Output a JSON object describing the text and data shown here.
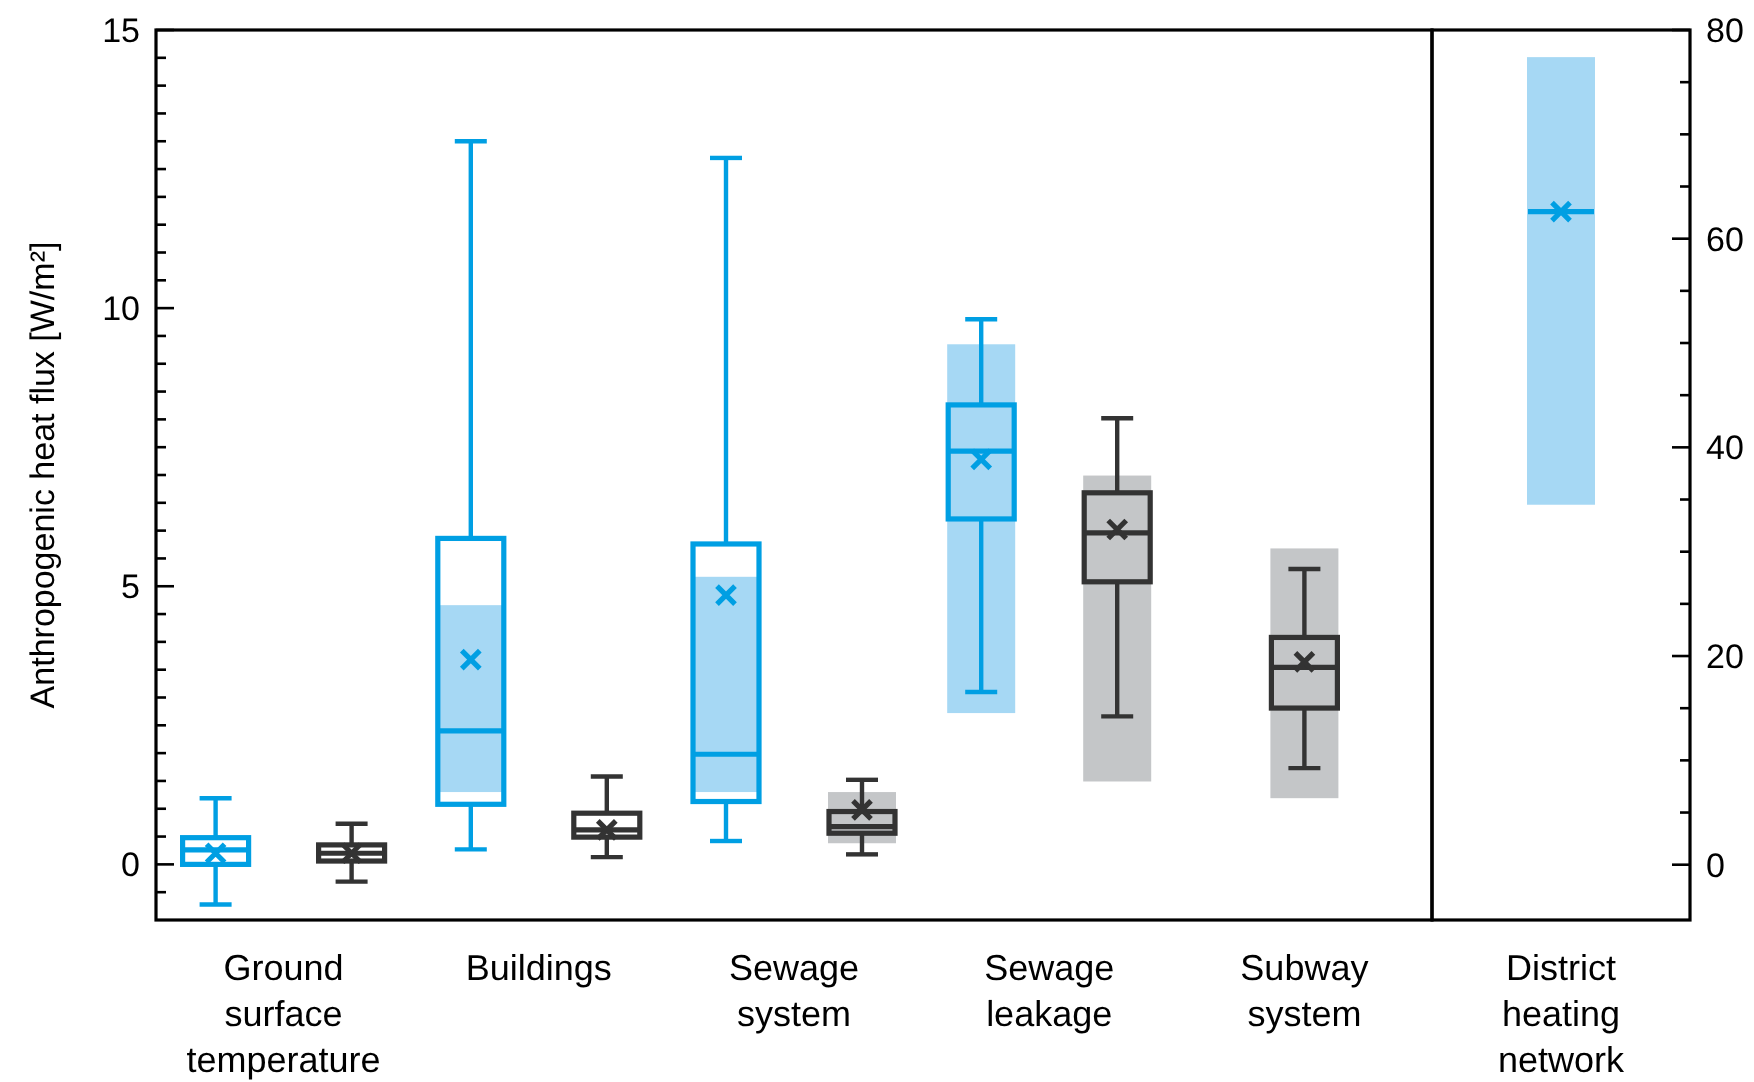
{
  "chart_data": [
    {
      "type": "box",
      "ylabel": "Anthropogenic heat flux [W/m²]",
      "categories": [
        "Ground surface temperature",
        "Buildings",
        "Sewage system",
        "Sewage leakage",
        "Subway system"
      ],
      "ylim": [
        -1,
        15
      ],
      "yticks": [
        {
          "value": -0.5,
          "label": null
        },
        0,
        {
          "value": 0.5,
          "label": null
        },
        {
          "value": 1,
          "label": null
        },
        {
          "value": 1.5,
          "label": null
        },
        {
          "value": 2,
          "label": null
        },
        {
          "value": 2.5,
          "label": null
        },
        {
          "value": 3,
          "label": null
        },
        {
          "value": 3.5,
          "label": null
        },
        {
          "value": 4,
          "label": null
        },
        {
          "value": 4.5,
          "label": null
        },
        5,
        {
          "value": 5.5,
          "label": null
        },
        {
          "value": 6,
          "label": null
        },
        {
          "value": 6.5,
          "label": null
        },
        {
          "value": 7,
          "label": null
        },
        {
          "value": 7.5,
          "label": null
        },
        {
          "value": 8,
          "label": null
        },
        {
          "value": 8.5,
          "label": null
        },
        {
          "value": 9,
          "label": null
        },
        {
          "value": 9.5,
          "label": null
        },
        10,
        {
          "value": 10.5,
          "label": null
        },
        {
          "value": 11,
          "label": null
        },
        {
          "value": 11.5,
          "label": null
        },
        {
          "value": 12,
          "label": null
        },
        {
          "value": 12.5,
          "label": null
        },
        {
          "value": 13,
          "label": null
        },
        {
          "value": 13.5,
          "label": null
        },
        {
          "value": 14,
          "label": null
        },
        {
          "value": 14.5,
          "label": null
        },
        15
      ],
      "series": [
        {
          "type": "bar",
          "color": "#a6d8f4",
          "base": [
            null,
            1.3,
            1.3,
            2.72,
            null
          ],
          "values": [
            null,
            3.36,
            3.87,
            6.63,
            null
          ]
        },
        {
          "type": "bar",
          "color": "#c4c6c8",
          "base": [
            null,
            null,
            0.38,
            1.49,
            1.19
          ],
          "values": [
            null,
            null,
            0.92,
            5.5,
            4.49
          ]
        },
        {
          "color": "#009fe3",
          "boxes": [
            {
              "low": -0.72,
              "q1": 0,
              "median": 0.26,
              "q3": 0.48,
              "high": 1.19,
              "mean": 0.2
            },
            {
              "low": 0.27,
              "q1": 1.08,
              "median": 2.4,
              "q3": 5.86,
              "high": 13,
              "mean": 3.68
            },
            {
              "low": 0.42,
              "q1": 1.13,
              "median": 1.98,
              "q3": 5.76,
              "high": 12.7,
              "mean": 4.84
            },
            {
              "low": 3.1,
              "q1": 6.21,
              "median": 7.43,
              "q3": 8.26,
              "high": 9.8,
              "mean": 7.28
            },
            null
          ]
        },
        {
          "color": "#333333",
          "boxes": [
            {
              "low": -0.31,
              "q1": 0.06,
              "median": 0.2,
              "q3": 0.35,
              "high": 0.73,
              "mean": 0.2
            },
            {
              "low": 0.13,
              "q1": 0.49,
              "median": 0.62,
              "q3": 0.92,
              "high": 1.58,
              "mean": 0.62
            },
            {
              "low": 0.18,
              "q1": 0.56,
              "median": 0.68,
              "q3": 0.95,
              "high": 1.52,
              "mean": 0.98
            },
            {
              "low": 2.66,
              "q1": 5.08,
              "median": 5.96,
              "q3": 6.68,
              "high": 8.02,
              "mean": 6.02
            },
            {
              "low": 1.73,
              "q1": 2.81,
              "median": 3.54,
              "q3": 4.08,
              "high": 5.31,
              "mean": 3.64
            }
          ]
        }
      ]
    },
    {
      "type": "box",
      "categories": [
        "District heating network"
      ],
      "y2lim": [
        -5.3,
        80
      ],
      "y2ticks": [
        0,
        {
          "value": 5,
          "label": null
        },
        {
          "value": 10,
          "label": null
        },
        {
          "value": 15,
          "label": null
        },
        20,
        {
          "value": 25,
          "label": null
        },
        {
          "value": 30,
          "label": null
        },
        {
          "value": 35,
          "label": null
        },
        40,
        {
          "value": 45,
          "label": null
        },
        {
          "value": 50,
          "label": null
        },
        {
          "value": 55,
          "label": null
        },
        60,
        {
          "value": 65,
          "label": null
        },
        {
          "value": 70,
          "label": null
        },
        {
          "value": 75,
          "label": null
        },
        80
      ],
      "series": [
        {
          "type": "bar",
          "axis": "y2",
          "color": "#a6d8f4",
          "base": [
            34.5
          ],
          "values": [
            42.9
          ]
        },
        {
          "axis": "y2",
          "color": "#009fe3",
          "boxes": [
            {
              "low": 62.6,
              "q1": 62.6,
              "median": 62.6,
              "q3": 62.6,
              "high": 62.6,
              "mean": 62.6
            }
          ]
        }
      ]
    }
  ]
}
